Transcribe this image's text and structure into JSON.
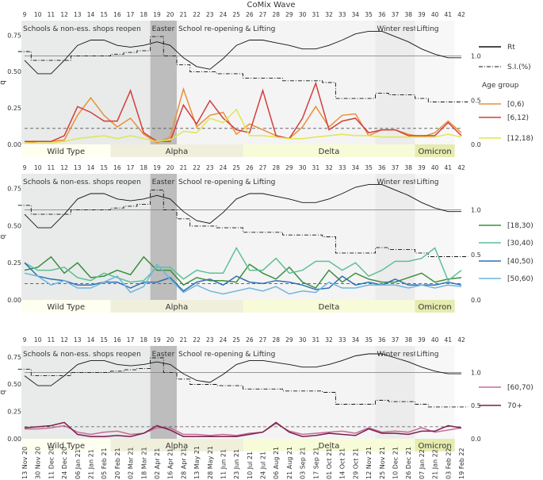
{
  "chart_data": {
    "type": "line",
    "title": "CoMix Wave",
    "wave_ticks": [
      9,
      10,
      11,
      12,
      13,
      14,
      15,
      16,
      17,
      18,
      19,
      20,
      21,
      22,
      23,
      24,
      25,
      26,
      27,
      28,
      29,
      30,
      31,
      32,
      33,
      34,
      35,
      36,
      37,
      38,
      39,
      40,
      41,
      42
    ],
    "dates": [
      "13 Nov 20",
      "30 Nov 20",
      "11 Dec 20",
      "24 Dec 20",
      "06 Jan 21",
      "21 Jan 21",
      "05 Feb 21",
      "20 Feb 21",
      "02 Mar 21",
      "18 Mar 21",
      "02 Apr 21",
      "16 Apr 21",
      "28 Apr 21",
      "13 May 21",
      "28 May 21",
      "11 Jun 21",
      "23 Jun 21",
      "10 Jul 21",
      "24 Jul 21",
      "06 Aug 21",
      "21 Aug 21",
      "03 Sep 21",
      "17 Sep 21",
      "01 Oct 21",
      "14 Oct 21",
      "29 Oct 21",
      "12 Nov 21",
      "25 Nov 21",
      "10 Dec 21",
      "26 Dec 21",
      "07 Jan 22",
      "21 Jan 22",
      "03 Feb 22",
      "19 Feb 22"
    ],
    "ylabel_left": "q̅",
    "left_ticks": [
      "0.00",
      "0.25",
      "0.50",
      "0.75"
    ],
    "right_ticks": [
      "0.0",
      "0.5",
      "1.0"
    ],
    "ylim_left": [
      0,
      0.85
    ],
    "ylim_right": [
      0,
      1.4
    ],
    "reference_line": 0.11,
    "periods": [
      {
        "label": "Schools & non-ess. shops reopen",
        "start": 0,
        "end": 10,
        "color": "#e8ebea"
      },
      {
        "label": "Easter pause",
        "start": 10,
        "end": 12,
        "color": "#bdbdbd"
      },
      {
        "label": "School re-opening & Lifting",
        "start": 12,
        "end": 27,
        "color": "#f4f4f4"
      },
      {
        "label": "Winter restrictions",
        "start": 27,
        "end": 30,
        "color": "#ececec"
      },
      {
        "label": "Lifting",
        "start": 30,
        "end": 33,
        "color": "#f7f7f7"
      }
    ],
    "variants": [
      {
        "label": "Wild Type",
        "start": 0,
        "end": 7,
        "color": "#fffff0"
      },
      {
        "label": "Alpha",
        "start": 7,
        "end": 17,
        "color": "#efefdc"
      },
      {
        "label": "Delta",
        "start": 17,
        "end": 30,
        "color": "#f7fbd8"
      },
      {
        "label": "Omicron",
        "start": 30,
        "end": 33,
        "color": "#e6ebb0"
      }
    ],
    "rt": {
      "name": "Rt",
      "values": [
        0.95,
        0.8,
        0.8,
        0.95,
        1.12,
        1.18,
        1.18,
        1.12,
        1.1,
        1.12,
        1.16,
        1.12,
        0.98,
        0.88,
        0.85,
        0.97,
        1.12,
        1.18,
        1.18,
        1.15,
        1.12,
        1.08,
        1.08,
        1.12,
        1.18,
        1.25,
        1.28,
        1.28,
        1.22,
        1.16,
        1.08,
        1.02,
        0.98,
        0.98
      ]
    },
    "si": {
      "name": "S.I.(%)",
      "values": [
        1.05,
        0.95,
        0.95,
        0.95,
        1.0,
        1.0,
        1.0,
        1.02,
        1.04,
        1.06,
        1.22,
        1.0,
        0.9,
        0.82,
        0.82,
        0.8,
        0.8,
        0.75,
        0.75,
        0.75,
        0.72,
        0.72,
        0.72,
        0.7,
        0.52,
        0.52,
        0.52,
        0.58,
        0.56,
        0.56,
        0.52,
        0.48,
        0.48,
        0.48
      ]
    },
    "rt_ref": 1.0,
    "legend_title": "Age group",
    "panels": [
      {
        "series": [
          {
            "name": "[0,6)",
            "color": "#e8913a",
            "values": [
              0.01,
              0.02,
              0.02,
              0.03,
              0.2,
              0.32,
              0.2,
              0.12,
              0.18,
              0.07,
              0.01,
              0.05,
              0.38,
              0.12,
              0.2,
              0.22,
              0.07,
              0.14,
              0.1,
              0.06,
              0.04,
              0.12,
              0.26,
              0.12,
              0.2,
              0.21,
              0.06,
              0.1,
              0.1,
              0.07,
              0.05,
              0.08,
              0.16,
              0.08
            ]
          },
          {
            "name": "[6,12)",
            "color": "#d43d3d",
            "values": [
              0.02,
              0.02,
              0.02,
              0.06,
              0.26,
              0.22,
              0.16,
              0.16,
              0.37,
              0.08,
              0.02,
              0.02,
              0.27,
              0.14,
              0.3,
              0.18,
              0.1,
              0.08,
              0.37,
              0.06,
              0.04,
              0.18,
              0.42,
              0.1,
              0.16,
              0.18,
              0.08,
              0.1,
              0.1,
              0.06,
              0.06,
              0.06,
              0.15,
              0.06
            ]
          },
          {
            "name": "[12,18)",
            "color": "#e2e550",
            "values": [
              0.01,
              0.01,
              0.01,
              0.02,
              0.04,
              0.05,
              0.06,
              0.04,
              0.06,
              0.04,
              0.02,
              0.03,
              0.09,
              0.08,
              0.18,
              0.15,
              0.24,
              0.06,
              0.06,
              0.05,
              0.04,
              0.04,
              0.05,
              0.06,
              0.07,
              0.06,
              0.06,
              0.05,
              0.05,
              0.05,
              0.05,
              0.05,
              0.07,
              0.05
            ]
          }
        ]
      },
      {
        "series": [
          {
            "name": "[18,30)",
            "color": "#3a8f3a",
            "values": [
              0.2,
              0.22,
              0.29,
              0.18,
              0.25,
              0.15,
              0.16,
              0.2,
              0.17,
              0.29,
              0.2,
              0.2,
              0.1,
              0.15,
              0.13,
              0.13,
              0.12,
              0.24,
              0.18,
              0.14,
              0.22,
              0.12,
              0.08,
              0.2,
              0.12,
              0.18,
              0.14,
              0.12,
              0.12,
              0.15,
              0.18,
              0.12,
              0.14,
              0.15
            ]
          },
          {
            "name": "[30,40)",
            "color": "#5fbf98",
            "values": [
              0.25,
              0.2,
              0.2,
              0.22,
              0.15,
              0.13,
              0.18,
              0.15,
              0.12,
              0.13,
              0.22,
              0.22,
              0.14,
              0.2,
              0.18,
              0.18,
              0.35,
              0.2,
              0.2,
              0.28,
              0.18,
              0.2,
              0.26,
              0.26,
              0.2,
              0.25,
              0.16,
              0.2,
              0.26,
              0.26,
              0.28,
              0.35,
              0.13,
              0.2
            ]
          },
          {
            "name": "[40,50)",
            "color": "#2f6fb2",
            "values": [
              0.25,
              0.16,
              0.14,
              0.13,
              0.1,
              0.1,
              0.12,
              0.12,
              0.08,
              0.12,
              0.12,
              0.15,
              0.06,
              0.12,
              0.14,
              0.1,
              0.16,
              0.12,
              0.11,
              0.13,
              0.12,
              0.1,
              0.07,
              0.08,
              0.16,
              0.1,
              0.12,
              0.1,
              0.14,
              0.1,
              0.1,
              0.1,
              0.12,
              0.1
            ]
          },
          {
            "name": "[50,60)",
            "color": "#6cb6e0",
            "values": [
              0.18,
              0.16,
              0.1,
              0.13,
              0.08,
              0.08,
              0.12,
              0.16,
              0.05,
              0.09,
              0.24,
              0.14,
              0.05,
              0.1,
              0.06,
              0.04,
              0.06,
              0.08,
              0.06,
              0.09,
              0.04,
              0.06,
              0.05,
              0.12,
              0.08,
              0.08,
              0.1,
              0.1,
              0.1,
              0.08,
              0.1,
              0.08,
              0.1,
              0.09
            ]
          }
        ]
      },
      {
        "series": [
          {
            "name": "[60,70)",
            "color": "#c76b9a",
            "values": [
              0.09,
              0.09,
              0.1,
              0.12,
              0.06,
              0.04,
              0.06,
              0.07,
              0.04,
              0.05,
              0.1,
              0.1,
              0.04,
              0.04,
              0.03,
              0.04,
              0.03,
              0.05,
              0.06,
              0.14,
              0.07,
              0.04,
              0.05,
              0.06,
              0.07,
              0.05,
              0.1,
              0.06,
              0.07,
              0.06,
              0.1,
              0.06,
              0.08,
              0.1
            ]
          },
          {
            "name": "70+",
            "color": "#7a1f4a",
            "values": [
              0.1,
              0.11,
              0.12,
              0.15,
              0.04,
              0.02,
              0.02,
              0.03,
              0.02,
              0.05,
              0.12,
              0.08,
              0.02,
              0.02,
              0.02,
              0.02,
              0.02,
              0.04,
              0.06,
              0.15,
              0.06,
              0.02,
              0.03,
              0.05,
              0.04,
              0.03,
              0.09,
              0.05,
              0.05,
              0.04,
              0.07,
              0.07,
              0.12,
              0.1
            ]
          }
        ]
      }
    ]
  }
}
